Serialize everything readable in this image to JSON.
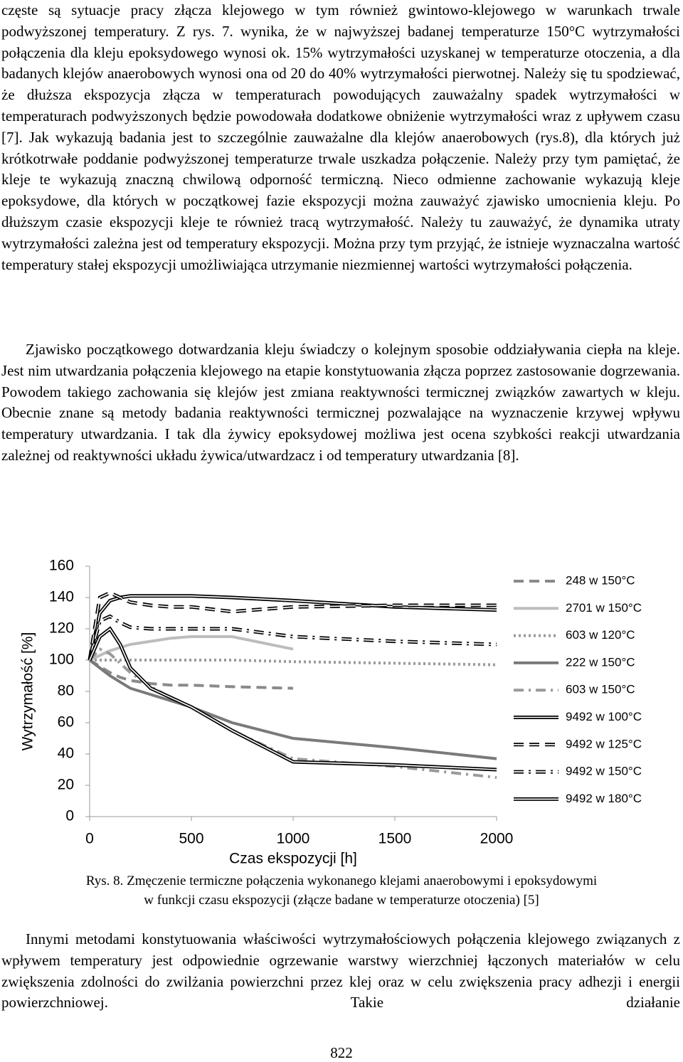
{
  "paragraphs": [
    "częste są sytuacje pracy złącza klejowego w tym również gwintowo-klejowego w warunkach trwale podwyższonej temperatury. Z rys. 7. wynika, że w najwyższej badanej temperaturze 150°C wytrzymałości połączenia dla kleju epoksydowego wynosi ok. 15% wytrzymałości uzyskanej w temperaturze otoczenia, a dla badanych klejów anaerobowych wynosi ona od 20 do 40% wytrzymałości pierwotnej. Należy się tu spodziewać, że dłuższa ekspozycja złącza w temperaturach powodujących zauważalny spadek wytrzymałości w temperaturach podwyższonych będzie powodowała dodatkowe obniżenie wytrzymałości wraz z upływem czasu [7]. Jak wykazują badania jest to szczególnie zauważalne dla klejów anaerobowych (rys.8), dla których już krótkotrwałe poddanie podwyższonej temperaturze trwale uszkadza połączenie. Należy przy tym pamiętać, że kleje te wykazują znaczną chwilową odporność termiczną. Nieco odmienne zachowanie wykazują kleje epoksydowe, dla których w początkowej fazie ekspozycji można zauważyć zjawisko umocnienia kleju. Po dłuższym czasie ekspozycji kleje te również tracą wytrzymałość. Należy tu zauważyć, że dynamika utraty wytrzymałości zależna jest od temperatury ekspozycji. Można przy tym przyjąć, że istnieje wyznaczalna wartość temperatury stałej ekspozycji umożliwiająca utrzymanie niezmiennej wartości wytrzymałości połączenia.",
    "Zjawisko początkowego dotwardzania kleju świadczy o kolejnym sposobie oddziaływania ciepła na kleje. Jest nim utwardzania połączenia klejowego na etapie konstytuowania złącza poprzez zastosowanie dogrzewania. Powodem takiego zachowania się klejów jest zmiana reaktywności termicznej związków zawartych w kleju. Obecnie znane są metody badania reaktywności termicznej pozwalające na wyznaczenie krzywej wpływu temperatury utwardzania. I tak dla żywicy epoksydowej możliwa jest ocena szybkości reakcji utwardzania zależnej od reaktywności układu żywica/utwardzacz i od temperatury utwardzania [8].",
    "Innymi metodami konstytuowania właściwości wytrzymałościowych połączenia klejowego związanych z wpływem temperatury jest odpowiednie ogrzewanie warstwy wierzchniej łączonych materiałów w celu zwiększenia zdolności do zwilżania powierzchni przez klej oraz w celu zwiększenia pracy adhezji i energii powierzchniowej. Takie działanie"
  ],
  "chart_data": {
    "type": "line",
    "x_label": "Czas ekspozycji [h]",
    "y_label": "Wytrzymałość [%]",
    "x": [
      0,
      50,
      100,
      150,
      200,
      300,
      400,
      500,
      700,
      1000,
      1500,
      2000
    ],
    "xlim": [
      0,
      2000
    ],
    "xticks": [
      0,
      500,
      1000,
      1500,
      2000
    ],
    "ylim": [
      0,
      160
    ],
    "yticks": [
      0,
      20,
      40,
      60,
      80,
      100,
      120,
      140,
      160
    ],
    "grid": false,
    "legend": "right",
    "series": [
      {
        "name": "248 w 150°C",
        "color": "#8a8a8a",
        "line_style": "dashed",
        "double": false,
        "values": [
          100,
          96,
          92,
          89,
          87,
          85,
          84,
          84,
          83,
          82,
          null,
          null
        ]
      },
      {
        "name": "2701 w 150°C",
        "color": "#bdbdbd",
        "line_style": "solid",
        "double": false,
        "values": [
          100,
          103,
          106,
          108,
          110,
          112,
          114,
          115,
          115,
          107,
          null,
          null
        ]
      },
      {
        "name": "603 w 120°C",
        "color": "#9a9a9a",
        "line_style": "dotted",
        "double": false,
        "values": [
          100,
          100,
          100,
          100,
          100,
          100,
          100,
          100,
          100,
          99,
          98,
          97
        ]
      },
      {
        "name": "222 w 150°C",
        "color": "#7a7a7a",
        "line_style": "solid",
        "double": false,
        "values": [
          100,
          95,
          90,
          86,
          82,
          78,
          74,
          70,
          60,
          50,
          44,
          37
        ]
      },
      {
        "name": "603 w 150°C",
        "color": "#9a9a9a",
        "line_style": "dashdot",
        "double": false,
        "values": [
          100,
          107,
          104,
          98,
          92,
          83,
          76,
          70,
          55,
          37,
          32,
          25
        ]
      },
      {
        "name": "9492 w 100°C",
        "color": "#000000",
        "line_style": "solid",
        "double": true,
        "values": [
          100,
          130,
          138,
          140,
          141,
          141,
          141,
          141,
          140,
          138,
          134,
          132
        ]
      },
      {
        "name": "9492 w 125°C",
        "color": "#000000",
        "line_style": "dashed",
        "double": true,
        "values": [
          100,
          140,
          143,
          140,
          137,
          135,
          134,
          134,
          131,
          134,
          135,
          135
        ]
      },
      {
        "name": "9492 w 150°C",
        "color": "#000000",
        "line_style": "dashdot",
        "double": true,
        "values": [
          100,
          125,
          128,
          124,
          121,
          120,
          120,
          120,
          120,
          115,
          112,
          110
        ]
      },
      {
        "name": "9492 w 180°C",
        "color": "#000000",
        "line_style": "solid",
        "double": true,
        "values": [
          100,
          115,
          120,
          110,
          95,
          82,
          76,
          70,
          55,
          35,
          33,
          30
        ]
      }
    ]
  },
  "caption": [
    "Rys. 8. Zmęczenie termiczne połączenia wykonanego klejami anaerobowymi i epoksydowymi",
    "w funkcji czasu ekspozycji (złącze badane w temperaturze otoczenia) [5]"
  ],
  "page_number": "822"
}
